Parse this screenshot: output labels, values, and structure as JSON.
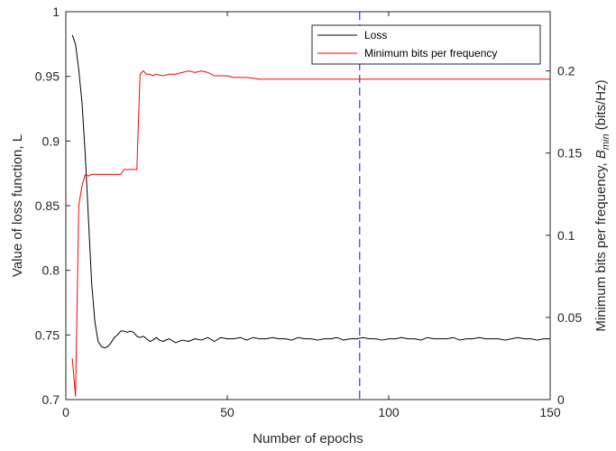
{
  "chart_data": {
    "type": "line",
    "xlabel": "Number of epochs",
    "ylabel_left": "Value of loss function, L",
    "ylabel_right_prefix": "Minimum bits per frequency, ",
    "ylabel_right_symbol": "B",
    "ylabel_right_subscript": "min",
    "ylabel_right_unit": " (bits/Hz)",
    "xlim": [
      0,
      150
    ],
    "ylim_left": [
      0.7,
      1.0
    ],
    "ylim_right": [
      0,
      0.236
    ],
    "xticks": [
      0,
      50,
      100,
      150
    ],
    "yticks_left": [
      0.7,
      0.75,
      0.8,
      0.85,
      0.9,
      0.95,
      1
    ],
    "yticks_left_labels": [
      "0.7",
      "0.75",
      "0.8",
      "0.85",
      "0.9",
      "0.95",
      "1"
    ],
    "yticks_right": [
      0,
      0.05,
      0.1,
      0.15,
      0.2
    ],
    "yticks_right_labels": [
      "0",
      "0.05",
      "0.1",
      "0.15",
      "0.2"
    ],
    "legend_position": "top-right",
    "vline": {
      "x": 91,
      "color": "#3333ff",
      "style": "dashed"
    },
    "series": [
      {
        "name": "Loss",
        "axis": "left",
        "color": "#000000",
        "x": [
          2,
          3,
          4,
          5,
          6,
          7,
          8,
          9,
          10,
          11,
          12,
          13,
          14,
          15,
          16,
          17,
          18,
          19,
          20,
          21,
          22,
          23,
          24,
          25,
          26,
          27,
          28,
          29,
          30,
          32,
          34,
          36,
          38,
          40,
          42,
          44,
          46,
          48,
          50,
          52,
          54,
          56,
          58,
          60,
          62,
          64,
          66,
          68,
          70,
          72,
          74,
          76,
          78,
          80,
          82,
          84,
          86,
          88,
          90,
          92,
          94,
          96,
          98,
          100,
          102,
          104,
          106,
          108,
          110,
          112,
          114,
          116,
          118,
          120,
          122,
          124,
          126,
          128,
          130,
          132,
          134,
          136,
          138,
          140,
          142,
          144,
          146,
          148,
          150
        ],
        "y": [
          0.982,
          0.975,
          0.955,
          0.93,
          0.89,
          0.84,
          0.79,
          0.76,
          0.745,
          0.741,
          0.74,
          0.741,
          0.744,
          0.748,
          0.75,
          0.753,
          0.753,
          0.752,
          0.753,
          0.752,
          0.749,
          0.748,
          0.749,
          0.747,
          0.745,
          0.746,
          0.748,
          0.746,
          0.745,
          0.747,
          0.744,
          0.746,
          0.745,
          0.747,
          0.746,
          0.748,
          0.745,
          0.748,
          0.747,
          0.747,
          0.748,
          0.746,
          0.748,
          0.747,
          0.747,
          0.748,
          0.747,
          0.747,
          0.746,
          0.748,
          0.747,
          0.747,
          0.746,
          0.747,
          0.747,
          0.748,
          0.746,
          0.747,
          0.747,
          0.748,
          0.747,
          0.747,
          0.746,
          0.747,
          0.747,
          0.748,
          0.747,
          0.747,
          0.746,
          0.748,
          0.747,
          0.747,
          0.747,
          0.748,
          0.746,
          0.747,
          0.747,
          0.748,
          0.747,
          0.747,
          0.747,
          0.746,
          0.747,
          0.748,
          0.747,
          0.747,
          0.746,
          0.747,
          0.747
        ]
      },
      {
        "name": "Minimum bits per frequency",
        "axis": "right",
        "color": "#ff0000",
        "x": [
          2,
          3,
          4,
          5,
          6,
          7,
          8,
          9,
          10,
          12,
          14,
          16,
          17,
          18,
          19,
          20,
          21,
          22,
          22.5,
          23,
          24,
          25,
          26,
          27,
          28,
          30,
          32,
          34,
          36,
          38,
          40,
          42,
          44,
          46,
          48,
          50,
          52,
          54,
          56,
          60,
          70,
          80,
          90,
          100,
          110,
          120,
          130,
          140,
          150
        ],
        "y": [
          0.025,
          0.002,
          0.118,
          0.13,
          0.137,
          0.136,
          0.137,
          0.137,
          0.137,
          0.137,
          0.137,
          0.137,
          0.137,
          0.14,
          0.14,
          0.14,
          0.14,
          0.14,
          0.17,
          0.198,
          0.2,
          0.198,
          0.198,
          0.197,
          0.198,
          0.197,
          0.198,
          0.198,
          0.199,
          0.2,
          0.199,
          0.2,
          0.199,
          0.197,
          0.197,
          0.197,
          0.196,
          0.196,
          0.196,
          0.195,
          0.195,
          0.195,
          0.195,
          0.195,
          0.195,
          0.195,
          0.195,
          0.195,
          0.195
        ]
      }
    ]
  }
}
